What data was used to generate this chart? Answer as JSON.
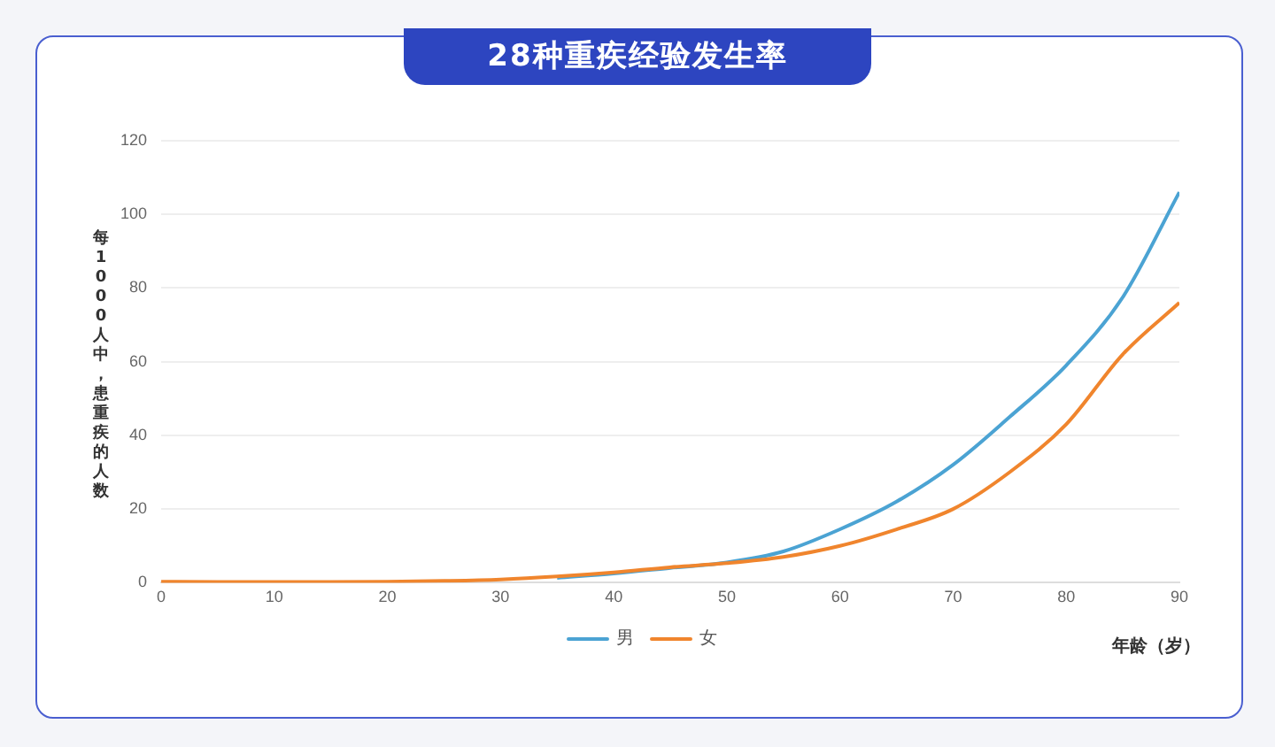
{
  "chart_data": {
    "type": "line",
    "title": "28种重疾经验发生率",
    "xlabel": "年龄（岁）",
    "ylabel": "每1000人中，患重疾的人数",
    "x": [
      0,
      5,
      10,
      15,
      20,
      25,
      30,
      35,
      40,
      45,
      50,
      55,
      60,
      65,
      70,
      75,
      80,
      85,
      90
    ],
    "series": [
      {
        "name": "男",
        "color": "#4ba3d3",
        "values": [
          null,
          null,
          null,
          null,
          null,
          null,
          null,
          1.3,
          2.5,
          4,
          5.5,
          8.5,
          14.5,
          22,
          32,
          45,
          59,
          77.5,
          106
        ]
      },
      {
        "name": "女",
        "color": "#f0852d",
        "values": [
          0.3,
          0.2,
          0.2,
          0.2,
          0.3,
          0.5,
          0.9,
          1.7,
          2.8,
          4.2,
          5.3,
          7,
          10,
          14.5,
          20,
          30,
          43,
          62,
          76
        ]
      }
    ],
    "xlim": [
      0,
      90
    ],
    "xticks": [
      0,
      10,
      20,
      30,
      40,
      50,
      60,
      70,
      80,
      90
    ],
    "ylim": [
      0,
      120
    ],
    "yticks": [
      0,
      20,
      40,
      60,
      80,
      100,
      120
    ],
    "grid": "y",
    "legend": "bottom",
    "marker": "none",
    "line_style": "solid"
  }
}
